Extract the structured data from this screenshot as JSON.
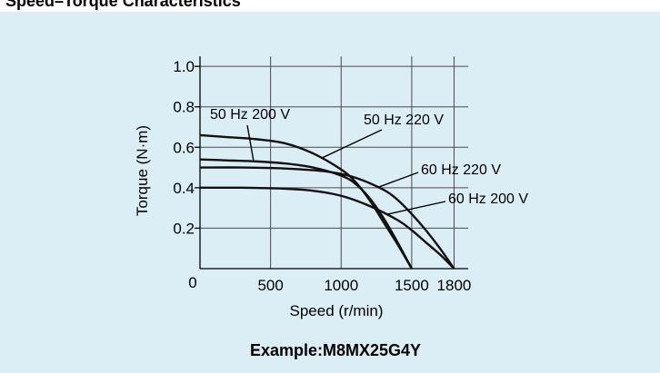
{
  "heading": "Speed–Torque Characteristics",
  "caption": "Example:M8MX25G4Y",
  "colors": {
    "panel_bg": "#dbeef5",
    "grid": "#4a4a4a",
    "curve": "#111111"
  },
  "chart_data": {
    "type": "line",
    "title": "",
    "xlabel": "Speed (r/min)",
    "ylabel": "Torque (N·m)",
    "xlim": [
      0,
      1900
    ],
    "ylim": [
      0,
      1.05
    ],
    "x_ticks": [
      0,
      500,
      1000,
      1500,
      1800
    ],
    "x_tick_labels": [
      "0",
      "500",
      "1000",
      "1500",
      "1800"
    ],
    "y_ticks": [
      0.2,
      0.4,
      0.6,
      0.8,
      1.0
    ],
    "y_tick_labels": [
      "0.2",
      "0.4",
      "0.6",
      "0.8",
      "1.0"
    ],
    "grid": true,
    "series": [
      {
        "name": "50 Hz 220 V",
        "x": [
          0,
          200,
          400,
          600,
          800,
          1000,
          1100,
          1200,
          1300,
          1400,
          1500
        ],
        "y": [
          0.66,
          0.65,
          0.64,
          0.62,
          0.57,
          0.49,
          0.43,
          0.34,
          0.23,
          0.12,
          0.0
        ]
      },
      {
        "name": "50 Hz 200 V",
        "x": [
          0,
          200,
          400,
          600,
          800,
          1000,
          1100,
          1200,
          1300,
          1400,
          1500
        ],
        "y": [
          0.54,
          0.535,
          0.53,
          0.52,
          0.5,
          0.46,
          0.42,
          0.35,
          0.25,
          0.13,
          0.0
        ]
      },
      {
        "name": "60 Hz 220 V",
        "x": [
          0,
          300,
          600,
          900,
          1100,
          1300,
          1400,
          1500,
          1600,
          1700,
          1800
        ],
        "y": [
          0.5,
          0.5,
          0.495,
          0.48,
          0.45,
          0.39,
          0.34,
          0.27,
          0.19,
          0.1,
          0.0
        ]
      },
      {
        "name": "60 Hz 200 V",
        "x": [
          0,
          300,
          600,
          800,
          1000,
          1200,
          1400,
          1500,
          1600,
          1700,
          1800
        ],
        "y": [
          0.4,
          0.4,
          0.395,
          0.385,
          0.36,
          0.31,
          0.24,
          0.19,
          0.13,
          0.07,
          0.0
        ]
      }
    ]
  }
}
